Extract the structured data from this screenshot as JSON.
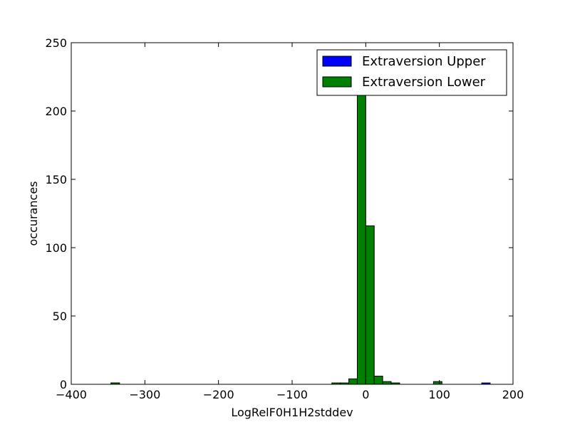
{
  "chart_data": {
    "type": "bar",
    "xlabel": "LogRelF0H1H2stddev",
    "ylabel": "occurances",
    "xlim": [
      -400,
      200
    ],
    "ylim": [
      0,
      250
    ],
    "xticks": [
      -400,
      -300,
      -200,
      -100,
      0,
      100,
      200
    ],
    "yticks": [
      0,
      50,
      100,
      150,
      200,
      250
    ],
    "xtick_labels": [
      "−400",
      "−300",
      "−200",
      "−100",
      "0",
      "100",
      "200"
    ],
    "ytick_labels": [
      "0",
      "50",
      "100",
      "150",
      "200",
      "250"
    ],
    "grid": false,
    "legend_position": "top-right",
    "bin_width": 11.5,
    "series": [
      {
        "name": "Extraversion Upper",
        "color": "#0000ff",
        "bins": [
          {
            "x0": -346,
            "count": 1
          },
          {
            "x0": 157.5,
            "count": 1
          }
        ]
      },
      {
        "name": "Extraversion Lower",
        "color": "#008000",
        "bins": [
          {
            "x0": -346,
            "count": 1
          },
          {
            "x0": -46,
            "count": 1
          },
          {
            "x0": -34.5,
            "count": 1
          },
          {
            "x0": -23,
            "count": 4
          },
          {
            "x0": -11.5,
            "count": 213
          },
          {
            "x0": 0,
            "count": 116
          },
          {
            "x0": 11.5,
            "count": 6
          },
          {
            "x0": 23,
            "count": 2
          },
          {
            "x0": 34.5,
            "count": 1
          },
          {
            "x0": 46,
            "count": 0
          },
          {
            "x0": 92,
            "count": 2
          }
        ]
      }
    ]
  }
}
